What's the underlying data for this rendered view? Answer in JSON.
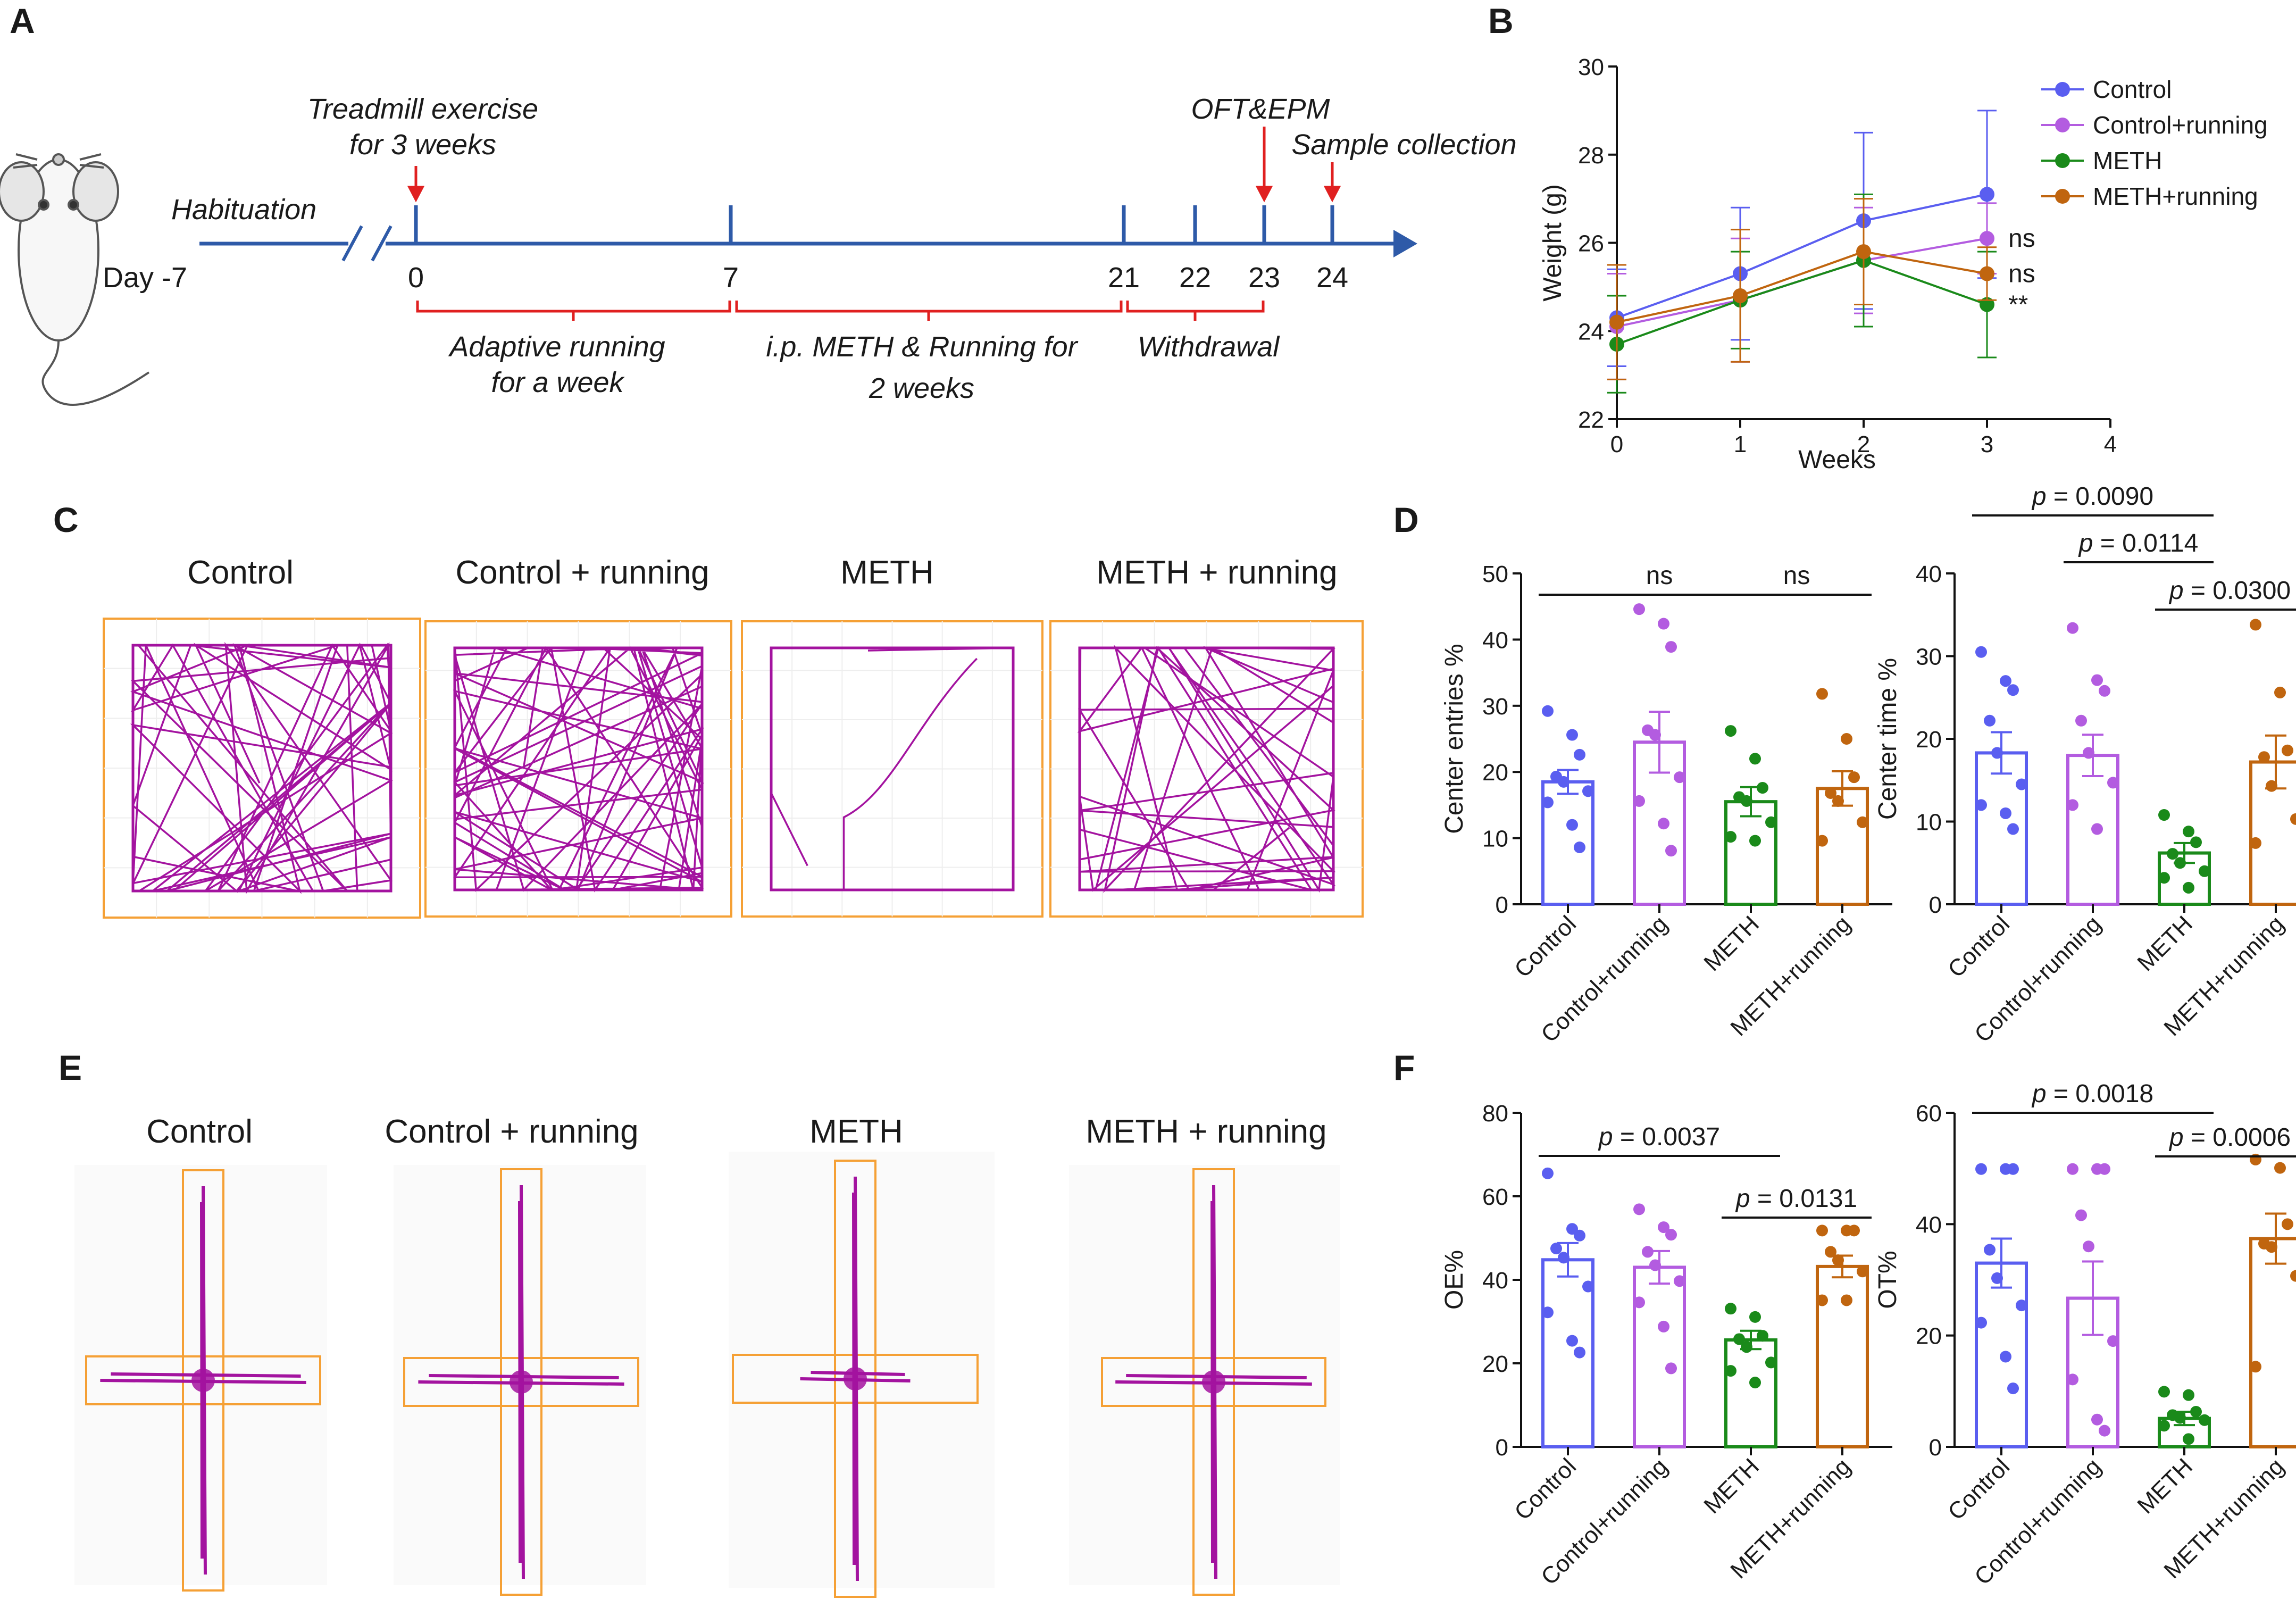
{
  "colors": {
    "control": "#5a5ef0",
    "control_running": "#b35ce0",
    "meth": "#1a8a1a",
    "meth_running": "#c0650f",
    "track": "#a3139f",
    "box": "#f5a035",
    "timeline": "#2e5aa8",
    "timeline_red": "#e02020"
  },
  "panels": {
    "a": "A",
    "b": "B",
    "c": "C",
    "d": "D",
    "e": "E",
    "f": "F"
  },
  "timeline": {
    "habituation": "Habituation",
    "day_start": "Day -7",
    "treadmill_1": "Treadmill exercise",
    "treadmill_2": "for 3 weeks",
    "oft_epm": "OFT&EPM",
    "sample": "Sample collection",
    "days": [
      "0",
      "7",
      "21",
      "22",
      "23",
      "24"
    ],
    "adaptive_1": "Adaptive running",
    "adaptive_2": "for a week",
    "ip_1": "i.p. METH & Running for",
    "ip_2": "2 weeks",
    "withdrawal": "Withdrawal"
  },
  "group_titles": [
    "Control",
    "Control  + running",
    "METH",
    "METH + running"
  ],
  "chart_data": [
    {
      "id": "B",
      "type": "line",
      "xlabel": "Weeks",
      "ylabel": "Weight (g)",
      "xlim": [
        0,
        4
      ],
      "ylim": [
        22,
        30
      ],
      "xticks": [
        0,
        1,
        2,
        3,
        4
      ],
      "yticks": [
        22,
        24,
        26,
        28,
        30
      ],
      "x": [
        0,
        1,
        2,
        3
      ],
      "series": [
        {
          "name": "Control",
          "values": [
            24.3,
            25.3,
            26.5,
            27.1
          ],
          "err": [
            1.1,
            1.5,
            2.0,
            1.9
          ],
          "sig": ""
        },
        {
          "name": "Control+running",
          "values": [
            24.1,
            24.7,
            25.6,
            26.1
          ],
          "err": [
            1.2,
            1.4,
            1.2,
            0.8
          ],
          "sig": "ns"
        },
        {
          "name": "METH",
          "values": [
            23.7,
            24.7,
            25.6,
            24.6
          ],
          "err": [
            1.1,
            1.1,
            1.5,
            1.2
          ],
          "sig": "**"
        },
        {
          "name": "METH+running",
          "values": [
            24.2,
            24.8,
            25.8,
            25.3
          ],
          "err": [
            1.3,
            1.5,
            1.2,
            0.6
          ],
          "sig": "ns"
        }
      ]
    },
    {
      "id": "D-left",
      "type": "bar",
      "ylabel": "Center entries %",
      "ylim": [
        0,
        50
      ],
      "yticks": [
        0,
        10,
        20,
        30,
        40,
        50
      ],
      "categories": [
        "Control",
        "Control+running",
        "METH",
        "METH+running"
      ],
      "values": [
        18.5,
        24.5,
        15.5,
        17.5
      ],
      "sem": [
        1.8,
        4.6,
        2.2,
        2.6
      ],
      "points": [
        [
          29.2,
          25.6,
          22.6,
          19.3,
          18.5,
          17.1,
          15.4,
          12.0,
          8.6
        ],
        [
          44.6,
          42.4,
          38.9,
          26.3,
          25.6,
          19.2,
          15.6,
          12.2,
          8.1
        ],
        [
          26.2,
          22.0,
          17.6,
          16.2,
          15.6,
          12.4,
          10.2,
          9.6
        ],
        [
          31.8,
          25.0,
          19.2,
          16.8,
          15.6,
          12.4,
          9.6
        ]
      ],
      "comparisons": [
        {
          "from": 0,
          "to": 2,
          "label": "ns"
        },
        {
          "from": 2,
          "to": 3,
          "label": "ns"
        }
      ]
    },
    {
      "id": "D-right",
      "type": "bar",
      "ylabel": "Center time %",
      "ylim": [
        0,
        40
      ],
      "yticks": [
        0,
        10,
        20,
        30,
        40
      ],
      "categories": [
        "Control",
        "Control+running",
        "METH",
        "METH+running"
      ],
      "values": [
        18.3,
        18.0,
        6.2,
        17.2
      ],
      "sem": [
        2.5,
        2.5,
        1.2,
        3.2
      ],
      "points": [
        [
          30.5,
          27.0,
          25.9,
          22.2,
          18.3,
          14.5,
          12.0,
          11.0,
          9.1
        ],
        [
          33.4,
          27.1,
          25.8,
          22.2,
          18.3,
          14.7,
          12.0,
          9.1
        ],
        [
          10.8,
          8.8,
          7.5,
          6.1,
          5.0,
          4.0,
          3.2,
          2.0
        ],
        [
          33.8,
          25.6,
          18.6,
          17.8,
          14.3,
          10.3,
          7.4
        ]
      ],
      "comparisons": [
        {
          "from": 0,
          "to": 2,
          "label": "= 0.0090"
        },
        {
          "from": 1,
          "to": 2,
          "label": "= 0.0114"
        },
        {
          "from": 2,
          "to": 3,
          "label": "= 0.0300"
        }
      ]
    },
    {
      "id": "F-left",
      "type": "bar",
      "ylabel": "OE%",
      "ylim": [
        0,
        80
      ],
      "yticks": [
        0,
        20,
        40,
        60,
        80
      ],
      "categories": [
        "Control",
        "Control+running",
        "METH",
        "METH+running"
      ],
      "values": [
        44.8,
        43.0,
        25.6,
        43.2
      ],
      "sem": [
        4.0,
        3.9,
        2.2,
        2.6
      ],
      "points": [
        [
          65.5,
          52.2,
          50.6,
          47.5,
          45.3,
          38.4,
          32.2,
          25.4,
          22.6
        ],
        [
          56.9,
          52.6,
          50.8,
          46.7,
          43.5,
          39.7,
          34.6,
          28.8,
          18.8
        ],
        [
          33.1,
          31.1,
          26.6,
          25.8,
          23.9,
          20.2,
          18.2,
          15.4
        ],
        [
          51.8,
          51.8,
          51.8,
          46.7,
          44.7,
          42.0,
          35.1,
          35.1
        ]
      ],
      "comparisons": [
        {
          "from": 0,
          "to": 2,
          "label": "= 0.0037"
        },
        {
          "from": 2,
          "to": 3,
          "label": "= 0.0131"
        }
      ]
    },
    {
      "id": "F-right",
      "type": "bar",
      "ylabel": "OT%",
      "ylim": [
        0,
        60
      ],
      "yticks": [
        0,
        20,
        40,
        60
      ],
      "categories": [
        "Control",
        "Control+running",
        "METH",
        "METH+running"
      ],
      "values": [
        33.0,
        26.7,
        5.1,
        37.4
      ],
      "sem": [
        4.4,
        6.6,
        1.2,
        4.5
      ],
      "points": [
        [
          49.9,
          49.9,
          49.9,
          35.4,
          30.3,
          25.4,
          22.3,
          16.2,
          10.5
        ],
        [
          49.9,
          49.9,
          49.9,
          41.6,
          36.0,
          19.0,
          12.1,
          4.9,
          2.9
        ],
        [
          9.9,
          9.3,
          6.3,
          5.7,
          5.2,
          4.8,
          3.8,
          1.4
        ],
        [
          51.6,
          50.1,
          40.0,
          36.5,
          35.9,
          30.7,
          14.4
        ]
      ],
      "comparisons": [
        {
          "from": 0,
          "to": 2,
          "label": "= 0.0018"
        },
        {
          "from": 2,
          "to": 3,
          "label": "= 0.0006"
        }
      ]
    }
  ]
}
